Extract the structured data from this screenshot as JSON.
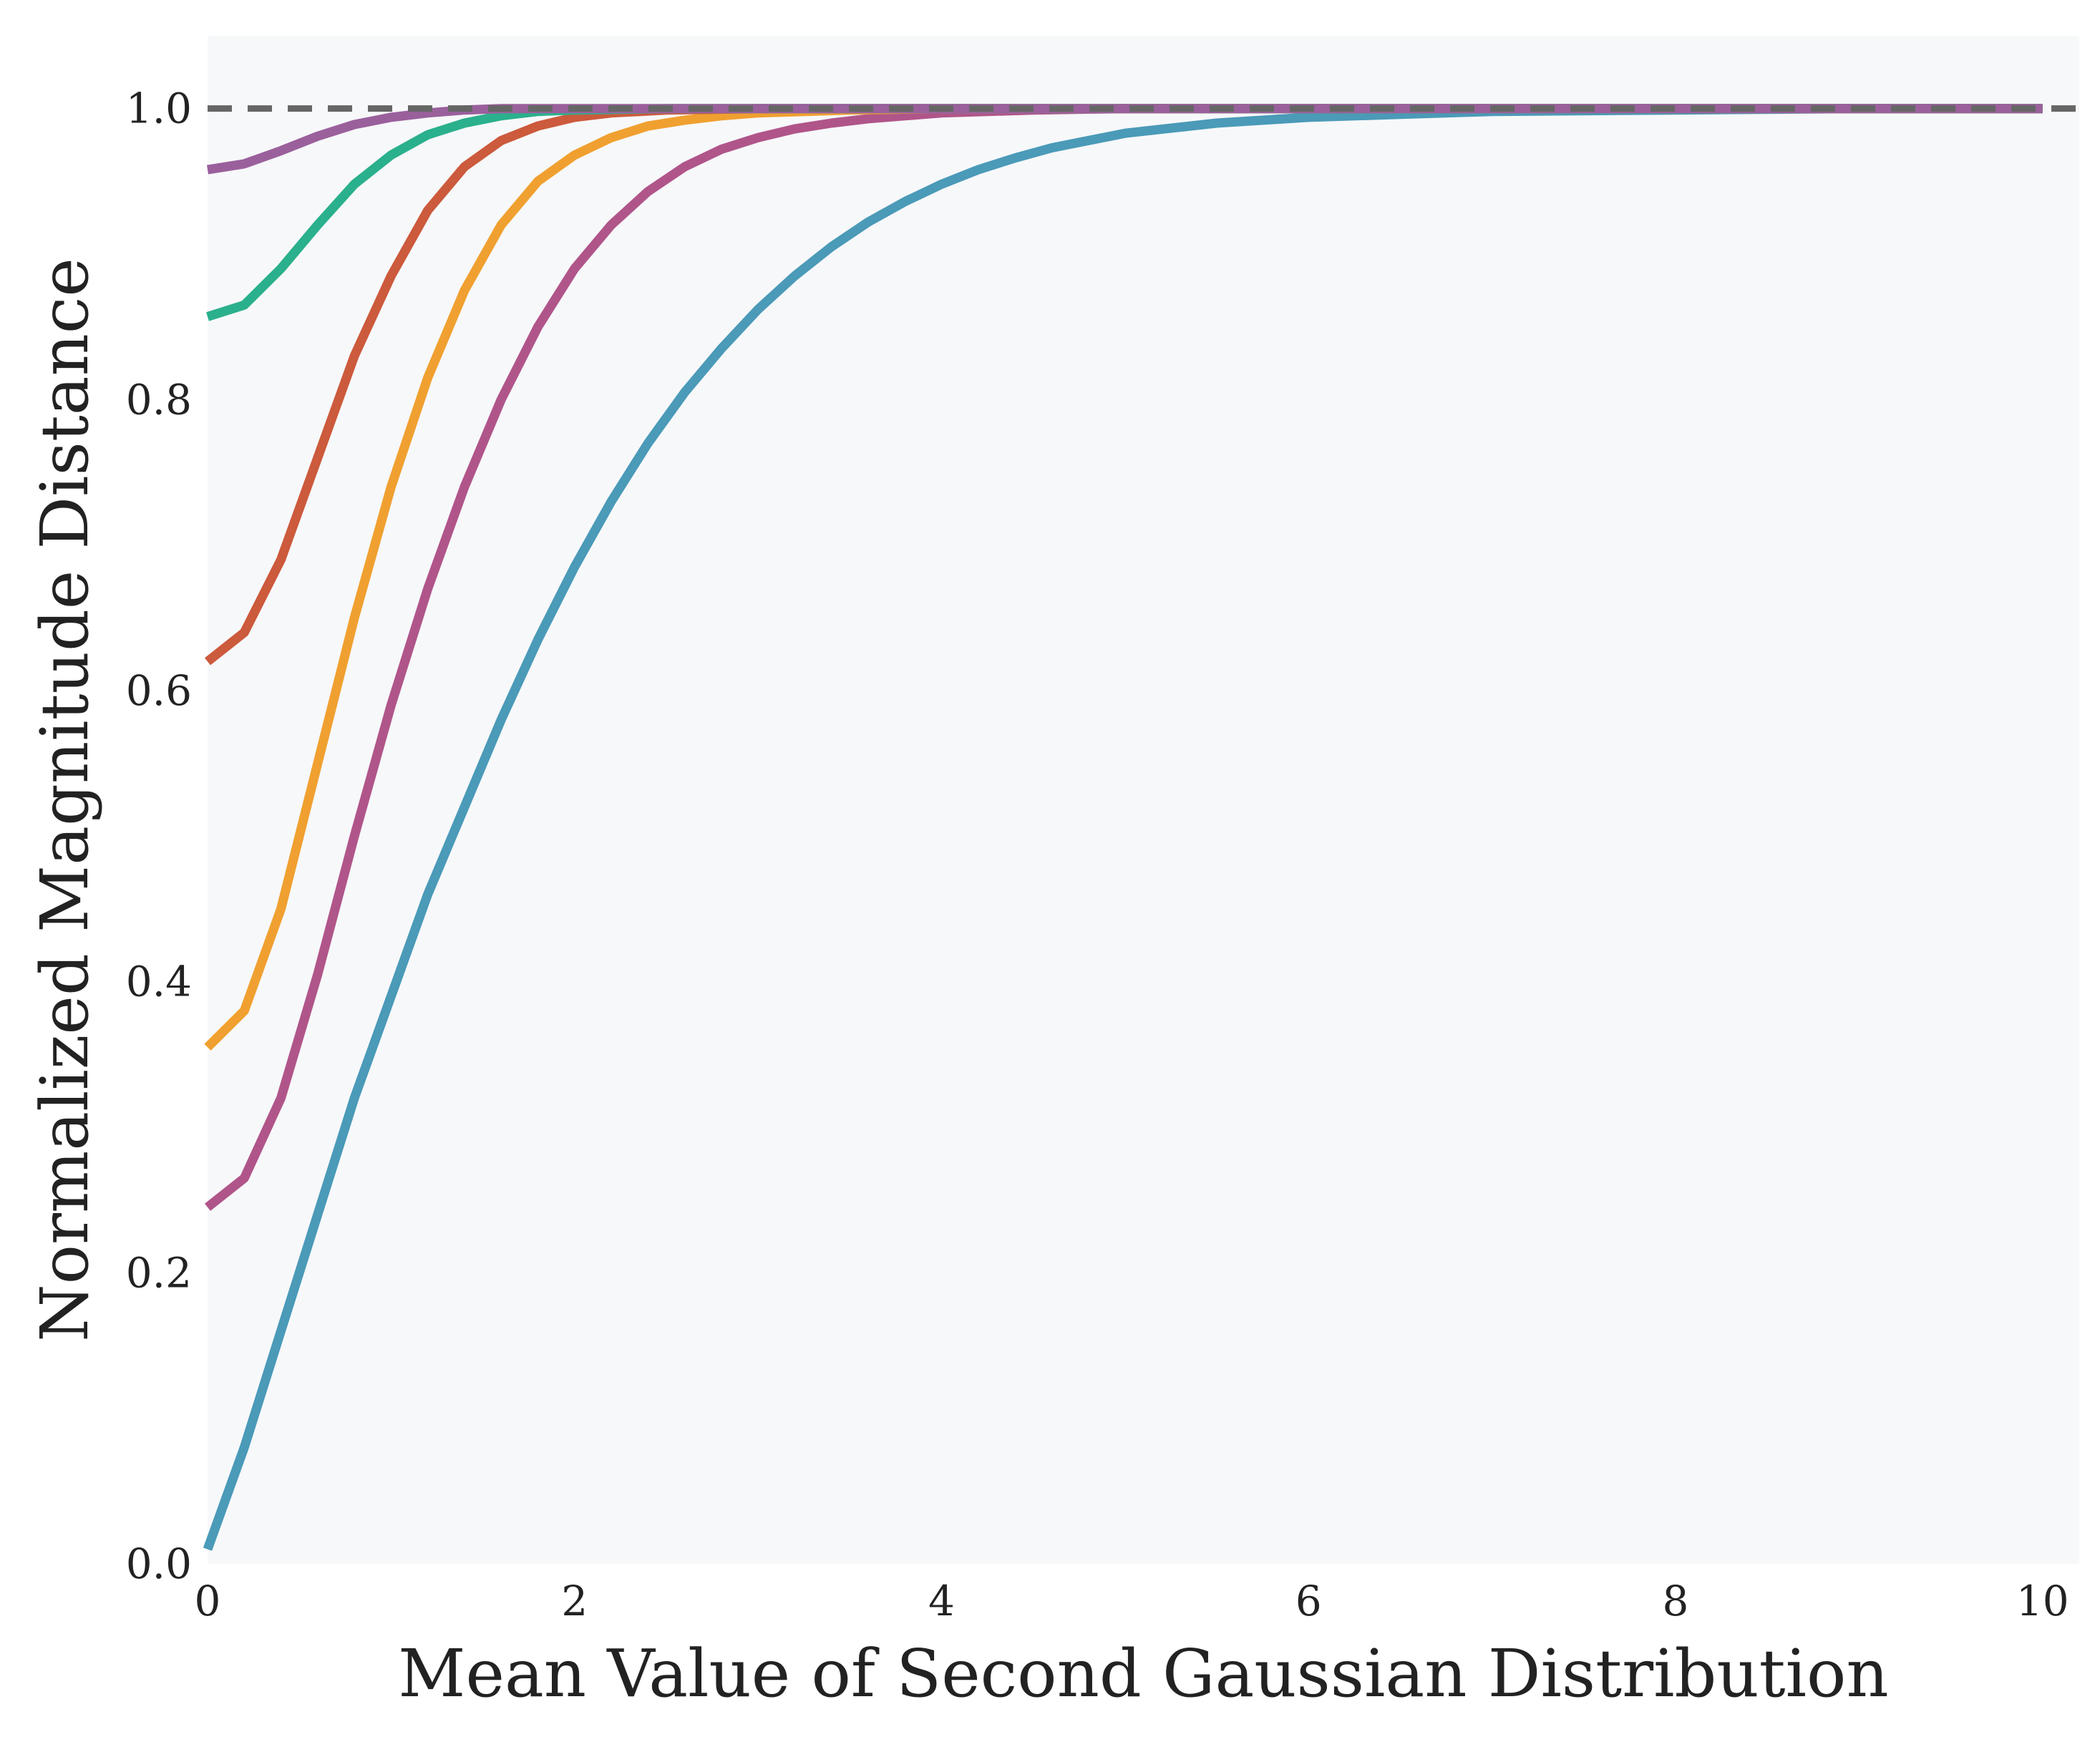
{
  "chart_data": {
    "type": "line",
    "title": "",
    "xlabel": "Mean Value of Second Gaussian Distribution",
    "ylabel": "Normalized Magnitude Distance",
    "xlim": [
      0,
      10.2
    ],
    "ylim": [
      0,
      1.05
    ],
    "xticks": [
      "0",
      "2",
      "4",
      "6",
      "8",
      "10"
    ],
    "yticks": [
      "0.0",
      "0.2",
      "0.4",
      "0.6",
      "0.8",
      "1.0"
    ],
    "grid": false,
    "legend": "none",
    "background": "#f7f8fa",
    "reference_line": {
      "y": 1.0,
      "style": "dashed",
      "color": "#666666"
    },
    "series": [
      {
        "color": "#4a9ab8",
        "x": [
          0,
          0.2,
          0.4,
          0.6,
          0.8,
          1.0,
          1.2,
          1.4,
          1.6,
          1.8,
          2.0,
          2.2,
          2.4,
          2.6,
          2.8,
          3.0,
          3.2,
          3.4,
          3.6,
          3.8,
          4.0,
          4.2,
          4.4,
          4.6,
          4.8,
          5.0,
          5.5,
          6.0,
          6.5,
          7.0,
          8.0,
          9.0,
          10.0
        ],
        "y": [
          0.01,
          0.08,
          0.16,
          0.24,
          0.32,
          0.39,
          0.46,
          0.52,
          0.58,
          0.635,
          0.685,
          0.73,
          0.77,
          0.805,
          0.835,
          0.862,
          0.885,
          0.905,
          0.922,
          0.936,
          0.948,
          0.958,
          0.966,
          0.973,
          0.978,
          0.983,
          0.99,
          0.994,
          0.996,
          0.998,
          0.999,
          1.0,
          1.0
        ]
      },
      {
        "color": "#b0558a",
        "x": [
          0,
          0.2,
          0.4,
          0.6,
          0.8,
          1.0,
          1.2,
          1.4,
          1.6,
          1.8,
          2.0,
          2.2,
          2.4,
          2.6,
          2.8,
          3.0,
          3.2,
          3.4,
          3.6,
          3.8,
          4.0,
          4.5,
          5.0,
          6.0,
          8.0,
          10.0
        ],
        "y": [
          0.245,
          0.265,
          0.32,
          0.405,
          0.5,
          0.59,
          0.67,
          0.74,
          0.8,
          0.85,
          0.89,
          0.92,
          0.943,
          0.96,
          0.972,
          0.98,
          0.986,
          0.99,
          0.993,
          0.995,
          0.997,
          0.999,
          1.0,
          1.0,
          1.0,
          1.0
        ]
      },
      {
        "color": "#f0a030",
        "x": [
          0,
          0.2,
          0.4,
          0.6,
          0.8,
          1.0,
          1.2,
          1.4,
          1.6,
          1.8,
          2.0,
          2.2,
          2.4,
          2.6,
          2.8,
          3.0,
          3.5,
          4.0,
          5.0,
          6.0,
          8.0,
          10.0
        ],
        "y": [
          0.355,
          0.38,
          0.45,
          0.55,
          0.65,
          0.74,
          0.815,
          0.875,
          0.92,
          0.95,
          0.968,
          0.98,
          0.988,
          0.992,
          0.995,
          0.997,
          0.999,
          1.0,
          1.0,
          1.0,
          1.0,
          1.0
        ]
      },
      {
        "color": "#cc5a3c",
        "x": [
          0,
          0.2,
          0.4,
          0.6,
          0.8,
          1.0,
          1.2,
          1.4,
          1.6,
          1.8,
          2.0,
          2.2,
          2.5,
          3.0,
          4.0,
          6.0,
          8.0,
          10.0
        ],
        "y": [
          0.62,
          0.64,
          0.69,
          0.76,
          0.83,
          0.885,
          0.93,
          0.96,
          0.978,
          0.988,
          0.994,
          0.997,
          0.999,
          1.0,
          1.0,
          1.0,
          1.0,
          1.0
        ]
      },
      {
        "color": "#2ab08c",
        "x": [
          0,
          0.2,
          0.4,
          0.6,
          0.8,
          1.0,
          1.2,
          1.4,
          1.6,
          1.8,
          2.0,
          2.5,
          4.0,
          6.0,
          8.0,
          10.0
        ],
        "y": [
          0.857,
          0.865,
          0.89,
          0.92,
          0.948,
          0.968,
          0.982,
          0.99,
          0.995,
          0.998,
          0.999,
          1.0,
          1.0,
          1.0,
          1.0,
          1.0
        ]
      },
      {
        "color": "#9a609c",
        "x": [
          0,
          0.2,
          0.4,
          0.6,
          0.8,
          1.0,
          1.2,
          1.4,
          1.6,
          2.0,
          3.0,
          4.0,
          6.0,
          8.0,
          10.0
        ],
        "y": [
          0.958,
          0.962,
          0.971,
          0.981,
          0.989,
          0.994,
          0.997,
          0.999,
          1.0,
          1.0,
          1.0,
          1.0,
          1.0,
          1.0,
          1.0
        ]
      }
    ]
  }
}
